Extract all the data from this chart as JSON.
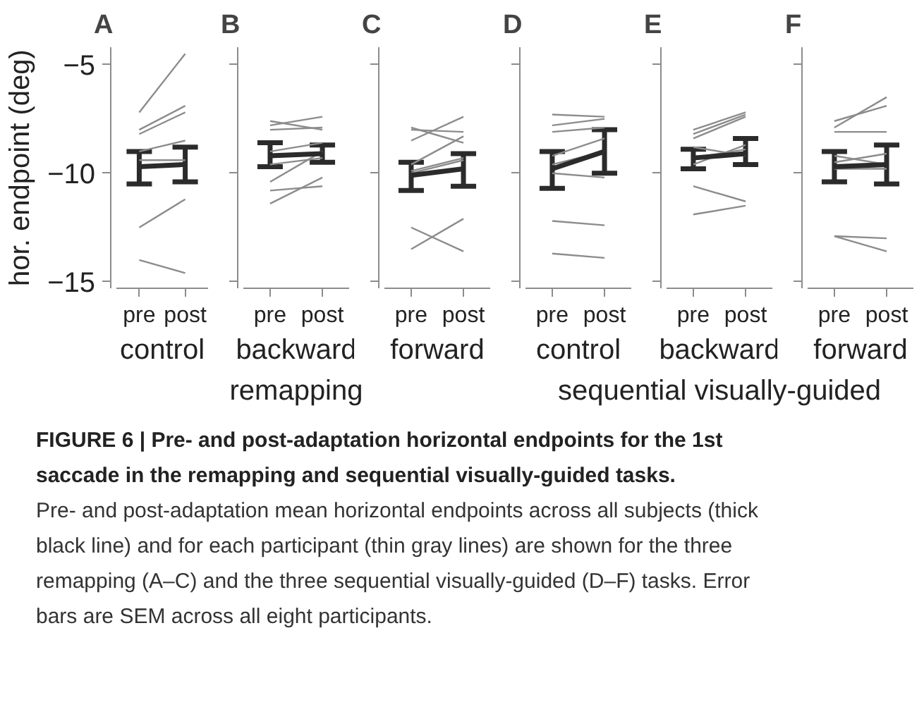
{
  "chart_data": [
    {
      "type": "line",
      "title": "A",
      "xlabel": "control",
      "ylabel": "hor. endpoint (deg)",
      "categories": [
        "pre",
        "post"
      ],
      "ylim": [
        -15.3,
        -4.2
      ],
      "yticks": [
        {
          "value": -5,
          "label": "−5"
        },
        {
          "value": -10,
          "label": "−10"
        },
        {
          "value": -15,
          "label": "−15"
        }
      ],
      "grid": false,
      "series": [
        {
          "color": "#8c8c8c",
          "values": [
            -7.2,
            -4.5
          ]
        },
        {
          "color": "#8c8c8c",
          "values": [
            -8.0,
            -6.9
          ]
        },
        {
          "color": "#8c8c8c",
          "values": [
            -8.2,
            -7.2
          ]
        },
        {
          "color": "#8c8c8c",
          "values": [
            -9.0,
            -8.5
          ]
        },
        {
          "color": "#8c8c8c",
          "values": [
            -9.4,
            -9.4
          ]
        },
        {
          "color": "#8c8c8c",
          "values": [
            null,
            null
          ]
        },
        {
          "color": "#8c8c8c",
          "values": [
            -12.5,
            -11.2
          ]
        },
        {
          "color": "#8c8c8c",
          "values": [
            -14.0,
            -14.6
          ]
        },
        {
          "color": "#2b2b2b",
          "values": [
            -9.7,
            -9.6
          ],
          "errors": [
            [
              -10.5,
              -9.0
            ],
            [
              -10.4,
              -8.8
            ]
          ]
        }
      ]
    },
    {
      "type": "line",
      "title": "B",
      "xlabel": "backward",
      "annotations": [
        "remapping"
      ],
      "categories": [
        "pre",
        "post"
      ],
      "ylim": [
        -15.3,
        -4.2
      ],
      "yticks": [
        -5,
        -10,
        -15
      ],
      "tick_labels": "x",
      "grid": false,
      "series": [
        {
          "color": "#8c8c8c",
          "values": [
            -7.6,
            -8.0
          ]
        },
        {
          "color": "#8c8c8c",
          "values": [
            -7.8,
            -7.4
          ]
        },
        {
          "color": "#8c8c8c",
          "values": [
            -8.0,
            -7.9
          ]
        },
        {
          "color": "#8c8c8c",
          "values": [
            -9.0,
            -8.6
          ]
        },
        {
          "color": "#8c8c8c",
          "values": [
            -9.6,
            -9.3
          ]
        },
        {
          "color": "#8c8c8c",
          "values": [
            -10.4,
            -9.0
          ]
        },
        {
          "color": "#8c8c8c",
          "values": [
            -10.8,
            -10.6
          ]
        },
        {
          "color": "#8c8c8c",
          "values": [
            -11.4,
            -10.2
          ]
        },
        {
          "color": "#2b2b2b",
          "values": [
            -9.2,
            -9.1
          ],
          "errors": [
            [
              -9.7,
              -8.6
            ],
            [
              -9.5,
              -8.7
            ]
          ]
        }
      ]
    },
    {
      "type": "line",
      "title": "C",
      "xlabel": "forward",
      "categories": [
        "pre",
        "post"
      ],
      "ylim": [
        -15.3,
        -4.2
      ],
      "yticks": [
        -5,
        -10,
        -15
      ],
      "tick_labels": "x",
      "grid": false,
      "series": [
        {
          "color": "#8c8c8c",
          "values": [
            -7.9,
            -8.6
          ]
        },
        {
          "color": "#8c8c8c",
          "values": [
            -8.5,
            -7.4
          ]
        },
        {
          "color": "#8c8c8c",
          "values": [
            -8.0,
            -8.1
          ]
        },
        {
          "color": "#8c8c8c",
          "values": [
            -9.6,
            -8.3
          ]
        },
        {
          "color": "#8c8c8c",
          "values": [
            -9.9,
            -9.3
          ]
        },
        {
          "color": "#8c8c8c",
          "values": [
            -10.0,
            -9.4
          ]
        },
        {
          "color": "#8c8c8c",
          "values": [
            -12.5,
            -13.6
          ]
        },
        {
          "color": "#8c8c8c",
          "values": [
            -13.5,
            -12.1
          ]
        },
        {
          "color": "#2b2b2b",
          "values": [
            -10.1,
            -9.8
          ],
          "errors": [
            [
              -10.8,
              -9.5
            ],
            [
              -10.6,
              -9.1
            ]
          ]
        }
      ]
    },
    {
      "type": "line",
      "title": "D",
      "xlabel": "control",
      "categories": [
        "pre",
        "post"
      ],
      "ylim": [
        -15.3,
        -4.2
      ],
      "yticks": [
        -5,
        -10,
        -15
      ],
      "tick_labels": "x",
      "grid": false,
      "series": [
        {
          "color": "#8c8c8c",
          "values": [
            -7.3,
            -7.4
          ]
        },
        {
          "color": "#8c8c8c",
          "values": [
            -7.8,
            -7.5
          ]
        },
        {
          "color": "#8c8c8c",
          "values": [
            -8.1,
            -7.9
          ]
        },
        {
          "color": "#8c8c8c",
          "values": [
            -9.2,
            -8.4
          ]
        },
        {
          "color": "#8c8c8c",
          "values": [
            -9.6,
            -9.0
          ]
        },
        {
          "color": "#8c8c8c",
          "values": [
            -10.0,
            -10.2
          ]
        },
        {
          "color": "#8c8c8c",
          "values": [
            -12.2,
            -12.4
          ]
        },
        {
          "color": "#8c8c8c",
          "values": [
            -13.7,
            -13.9
          ]
        },
        {
          "color": "#2b2b2b",
          "values": [
            -9.8,
            -9.0
          ],
          "errors": [
            [
              -10.7,
              -9.0
            ],
            [
              -10.0,
              -8.0
            ]
          ]
        }
      ]
    },
    {
      "type": "line",
      "title": "E",
      "xlabel": "backward",
      "annotations": [
        "sequential visually-guided"
      ],
      "categories": [
        "pre",
        "post"
      ],
      "ylim": [
        -15.3,
        -4.2
      ],
      "yticks": [
        -5,
        -10,
        -15
      ],
      "tick_labels": "x",
      "grid": false,
      "series": [
        {
          "color": "#8c8c8c",
          "values": [
            -8.0,
            -7.2
          ]
        },
        {
          "color": "#8c8c8c",
          "values": [
            -8.2,
            -7.3
          ]
        },
        {
          "color": "#8c8c8c",
          "values": [
            -8.4,
            -7.4
          ]
        },
        {
          "color": "#8c8c8c",
          "values": [
            -8.8,
            -9.2
          ]
        },
        {
          "color": "#8c8c8c",
          "values": [
            -9.3,
            -8.9
          ]
        },
        {
          "color": "#8c8c8c",
          "values": [
            -9.6,
            -8.7
          ]
        },
        {
          "color": "#8c8c8c",
          "values": [
            -10.6,
            -11.3
          ]
        },
        {
          "color": "#8c8c8c",
          "values": [
            -11.9,
            -11.5
          ]
        },
        {
          "color": "#2b2b2b",
          "values": [
            -9.3,
            -9.1
          ],
          "errors": [
            [
              -9.8,
              -8.9
            ],
            [
              -9.6,
              -8.4
            ]
          ]
        }
      ]
    },
    {
      "type": "line",
      "title": "F",
      "xlabel": "forward",
      "categories": [
        "pre",
        "post"
      ],
      "ylim": [
        -15.3,
        -4.2
      ],
      "yticks": [
        -5,
        -10,
        -15
      ],
      "tick_labels": "x",
      "grid": false,
      "series": [
        {
          "color": "#8c8c8c",
          "values": [
            -7.9,
            -6.5
          ]
        },
        {
          "color": "#8c8c8c",
          "values": [
            -7.6,
            -6.9
          ]
        },
        {
          "color": "#8c8c8c",
          "values": [
            -8.1,
            -8.1
          ]
        },
        {
          "color": "#8c8c8c",
          "values": [
            -9.2,
            -9.6
          ]
        },
        {
          "color": "#8c8c8c",
          "values": [
            -9.5,
            -9.1
          ]
        },
        {
          "color": "#8c8c8c",
          "values": [
            -9.8,
            -9.8
          ]
        },
        {
          "color": "#8c8c8c",
          "values": [
            -12.9,
            -13.0
          ]
        },
        {
          "color": "#8c8c8c",
          "values": [
            -12.9,
            -13.6
          ]
        },
        {
          "color": "#2b2b2b",
          "values": [
            -9.7,
            -9.6
          ],
          "errors": [
            [
              -10.4,
              -9.0
            ],
            [
              -10.5,
              -8.7
            ]
          ]
        }
      ]
    },
    {
      "type": "other",
      "title": "FIGURE 6 | Pre- and post-adaptation horizontal endpoints for the 1st saccade in the remapping and sequential visually-guided tasks.",
      "annotations": [
        "Pre- and post-adaptation mean horizontal endpoints across all subjects (thick black line) and for each participant (thin gray lines) are shown for the three remapping (A–C) and the three sequential visually-guided (D–F) tasks. Error bars are SEM across all eight participants."
      ]
    }
  ]
}
